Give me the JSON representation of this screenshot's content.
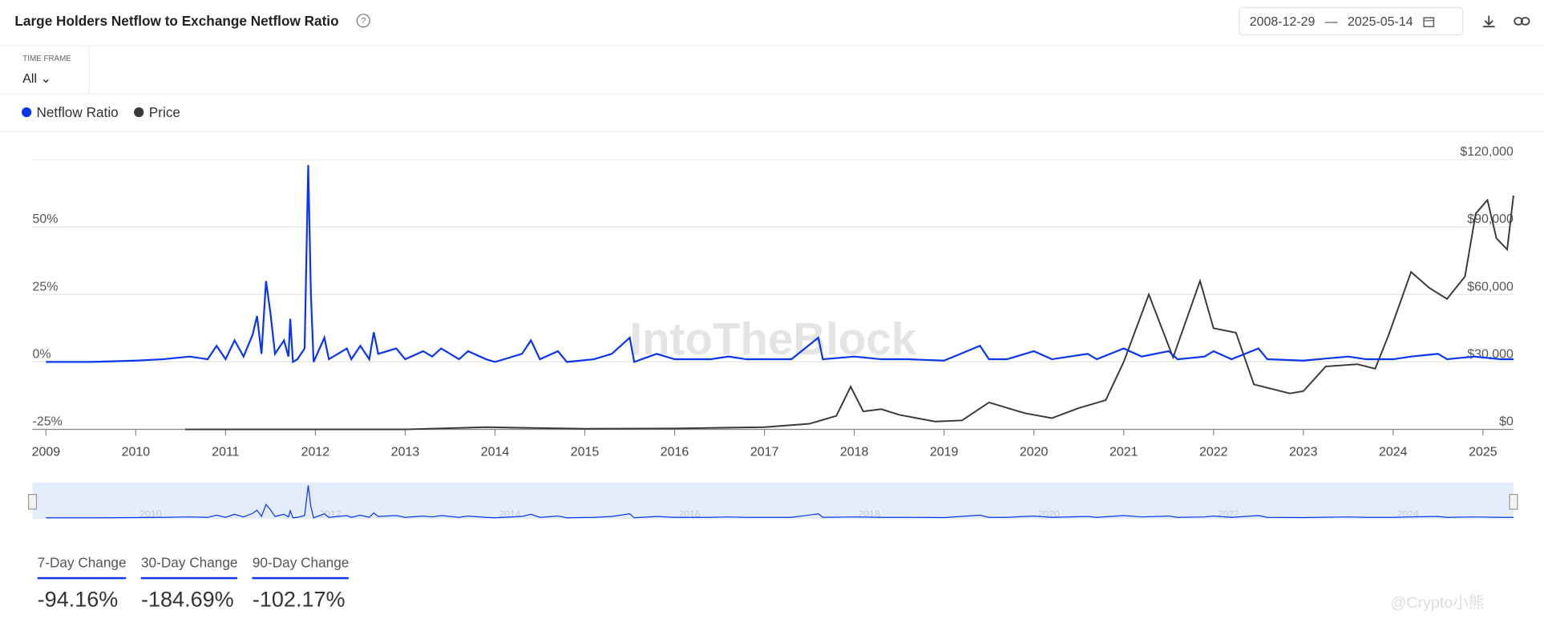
{
  "header": {
    "title": "Large Holders Netflow to Exchange Netflow Ratio",
    "date_from": "2008-12-29",
    "date_sep": "—",
    "date_to": "2025-05-14"
  },
  "timeframe": {
    "label": "TIME FRAME",
    "value": "All"
  },
  "watermark": "IntoTheBlock",
  "corner_mark": "@Crypto小熊",
  "chart_data": {
    "type": "line",
    "xlim": [
      2008.85,
      2025.34
    ],
    "xticks": [
      2009,
      2010,
      2011,
      2012,
      2013,
      2014,
      2015,
      2016,
      2017,
      2018,
      2019,
      2020,
      2021,
      2022,
      2023,
      2024,
      2025
    ],
    "ylim": [
      -25,
      75
    ],
    "yticks": [
      {
        "value": -25,
        "label": "-25%"
      },
      {
        "value": 0,
        "label": "0%"
      },
      {
        "value": 25,
        "label": "25%"
      },
      {
        "value": 50,
        "label": "50%"
      }
    ],
    "y2lim": [
      0,
      120000
    ],
    "y2ticks": [
      {
        "value": 0,
        "label": "$0"
      },
      {
        "value": 30000,
        "label": "$30,000"
      },
      {
        "value": 60000,
        "label": "$60,000"
      },
      {
        "value": 90000,
        "label": "$90,000"
      },
      {
        "value": 120000,
        "label": "$120,000"
      }
    ],
    "grid": true,
    "series": [
      {
        "name": "Netflow Ratio",
        "color": "#0b36ef",
        "axis": "y",
        "x": [
          2009.0,
          2009.5,
          2010.0,
          2010.3,
          2010.6,
          2010.8,
          2010.9,
          2011.0,
          2011.1,
          2011.2,
          2011.3,
          2011.35,
          2011.4,
          2011.45,
          2011.5,
          2011.55,
          2011.65,
          2011.7,
          2011.72,
          2011.75,
          2011.8,
          2011.88,
          2011.92,
          2011.95,
          2011.98,
          2012.1,
          2012.15,
          2012.35,
          2012.4,
          2012.5,
          2012.6,
          2012.65,
          2012.7,
          2012.9,
          2013.0,
          2013.2,
          2013.3,
          2013.4,
          2013.6,
          2013.7,
          2013.9,
          2014.0,
          2014.3,
          2014.4,
          2014.5,
          2014.7,
          2014.8,
          2015.1,
          2015.3,
          2015.5,
          2015.55,
          2015.8,
          2016.0,
          2016.4,
          2016.6,
          2016.8,
          2017.0,
          2017.3,
          2017.6,
          2017.65,
          2018.0,
          2018.3,
          2018.6,
          2019.0,
          2019.4,
          2019.5,
          2019.7,
          2020.0,
          2020.2,
          2020.6,
          2020.7,
          2021.0,
          2021.2,
          2021.5,
          2021.6,
          2021.9,
          2022.0,
          2022.2,
          2022.5,
          2022.6,
          2023.0,
          2023.5,
          2023.7,
          2024.0,
          2024.2,
          2024.5,
          2024.6,
          2024.9,
          2025.2,
          2025.34
        ],
        "values": [
          0,
          0,
          0.5,
          1,
          2,
          1,
          6,
          1,
          8,
          2,
          10,
          17,
          3,
          30,
          18,
          3,
          8,
          2,
          16,
          0,
          1,
          5,
          73,
          25,
          0,
          9,
          1,
          5,
          1,
          6,
          1,
          11,
          3,
          5,
          1,
          4,
          2,
          5,
          1,
          4,
          1,
          0,
          3,
          8,
          1,
          4,
          0,
          1,
          3,
          9,
          0,
          3,
          1,
          1,
          2,
          1,
          1,
          1,
          9,
          1,
          2,
          1,
          1,
          0.5,
          6,
          1,
          1,
          4,
          1,
          3,
          1,
          5,
          2,
          4,
          1,
          2,
          4,
          1,
          5,
          1,
          0.5,
          2,
          1,
          1,
          2,
          3,
          1,
          2,
          1,
          1
        ]
      },
      {
        "name": "Price",
        "color": "#3a3a3a",
        "axis": "y2",
        "x": [
          2010.55,
          2013.0,
          2013.9,
          2014.5,
          2015.0,
          2016.0,
          2017.0,
          2017.5,
          2017.8,
          2017.96,
          2018.1,
          2018.3,
          2018.5,
          2018.9,
          2019.2,
          2019.5,
          2019.9,
          2020.2,
          2020.5,
          2020.8,
          2021.0,
          2021.28,
          2021.55,
          2021.85,
          2022.0,
          2022.25,
          2022.45,
          2022.85,
          2023.0,
          2023.25,
          2023.6,
          2023.8,
          2023.95,
          2024.2,
          2024.4,
          2024.6,
          2024.8,
          2024.92,
          2025.05,
          2025.15,
          2025.27,
          2025.34
        ],
        "values": [
          0,
          13,
          1000,
          600,
          300,
          430,
          1000,
          2500,
          6000,
          19000,
          8000,
          9000,
          6500,
          3500,
          4000,
          12000,
          7200,
          5000,
          9500,
          13000,
          30000,
          60000,
          32000,
          66000,
          45000,
          43000,
          20000,
          16000,
          17000,
          28000,
          29000,
          27000,
          42000,
          70000,
          63000,
          58000,
          68000,
          96000,
          102000,
          85000,
          80000,
          104000
        ]
      }
    ]
  },
  "stats": [
    {
      "label": "7-Day Change",
      "value": "-94.16%"
    },
    {
      "label": "30-Day Change",
      "value": "-184.69%"
    },
    {
      "label": "90-Day Change",
      "value": "-102.17%"
    }
  ]
}
